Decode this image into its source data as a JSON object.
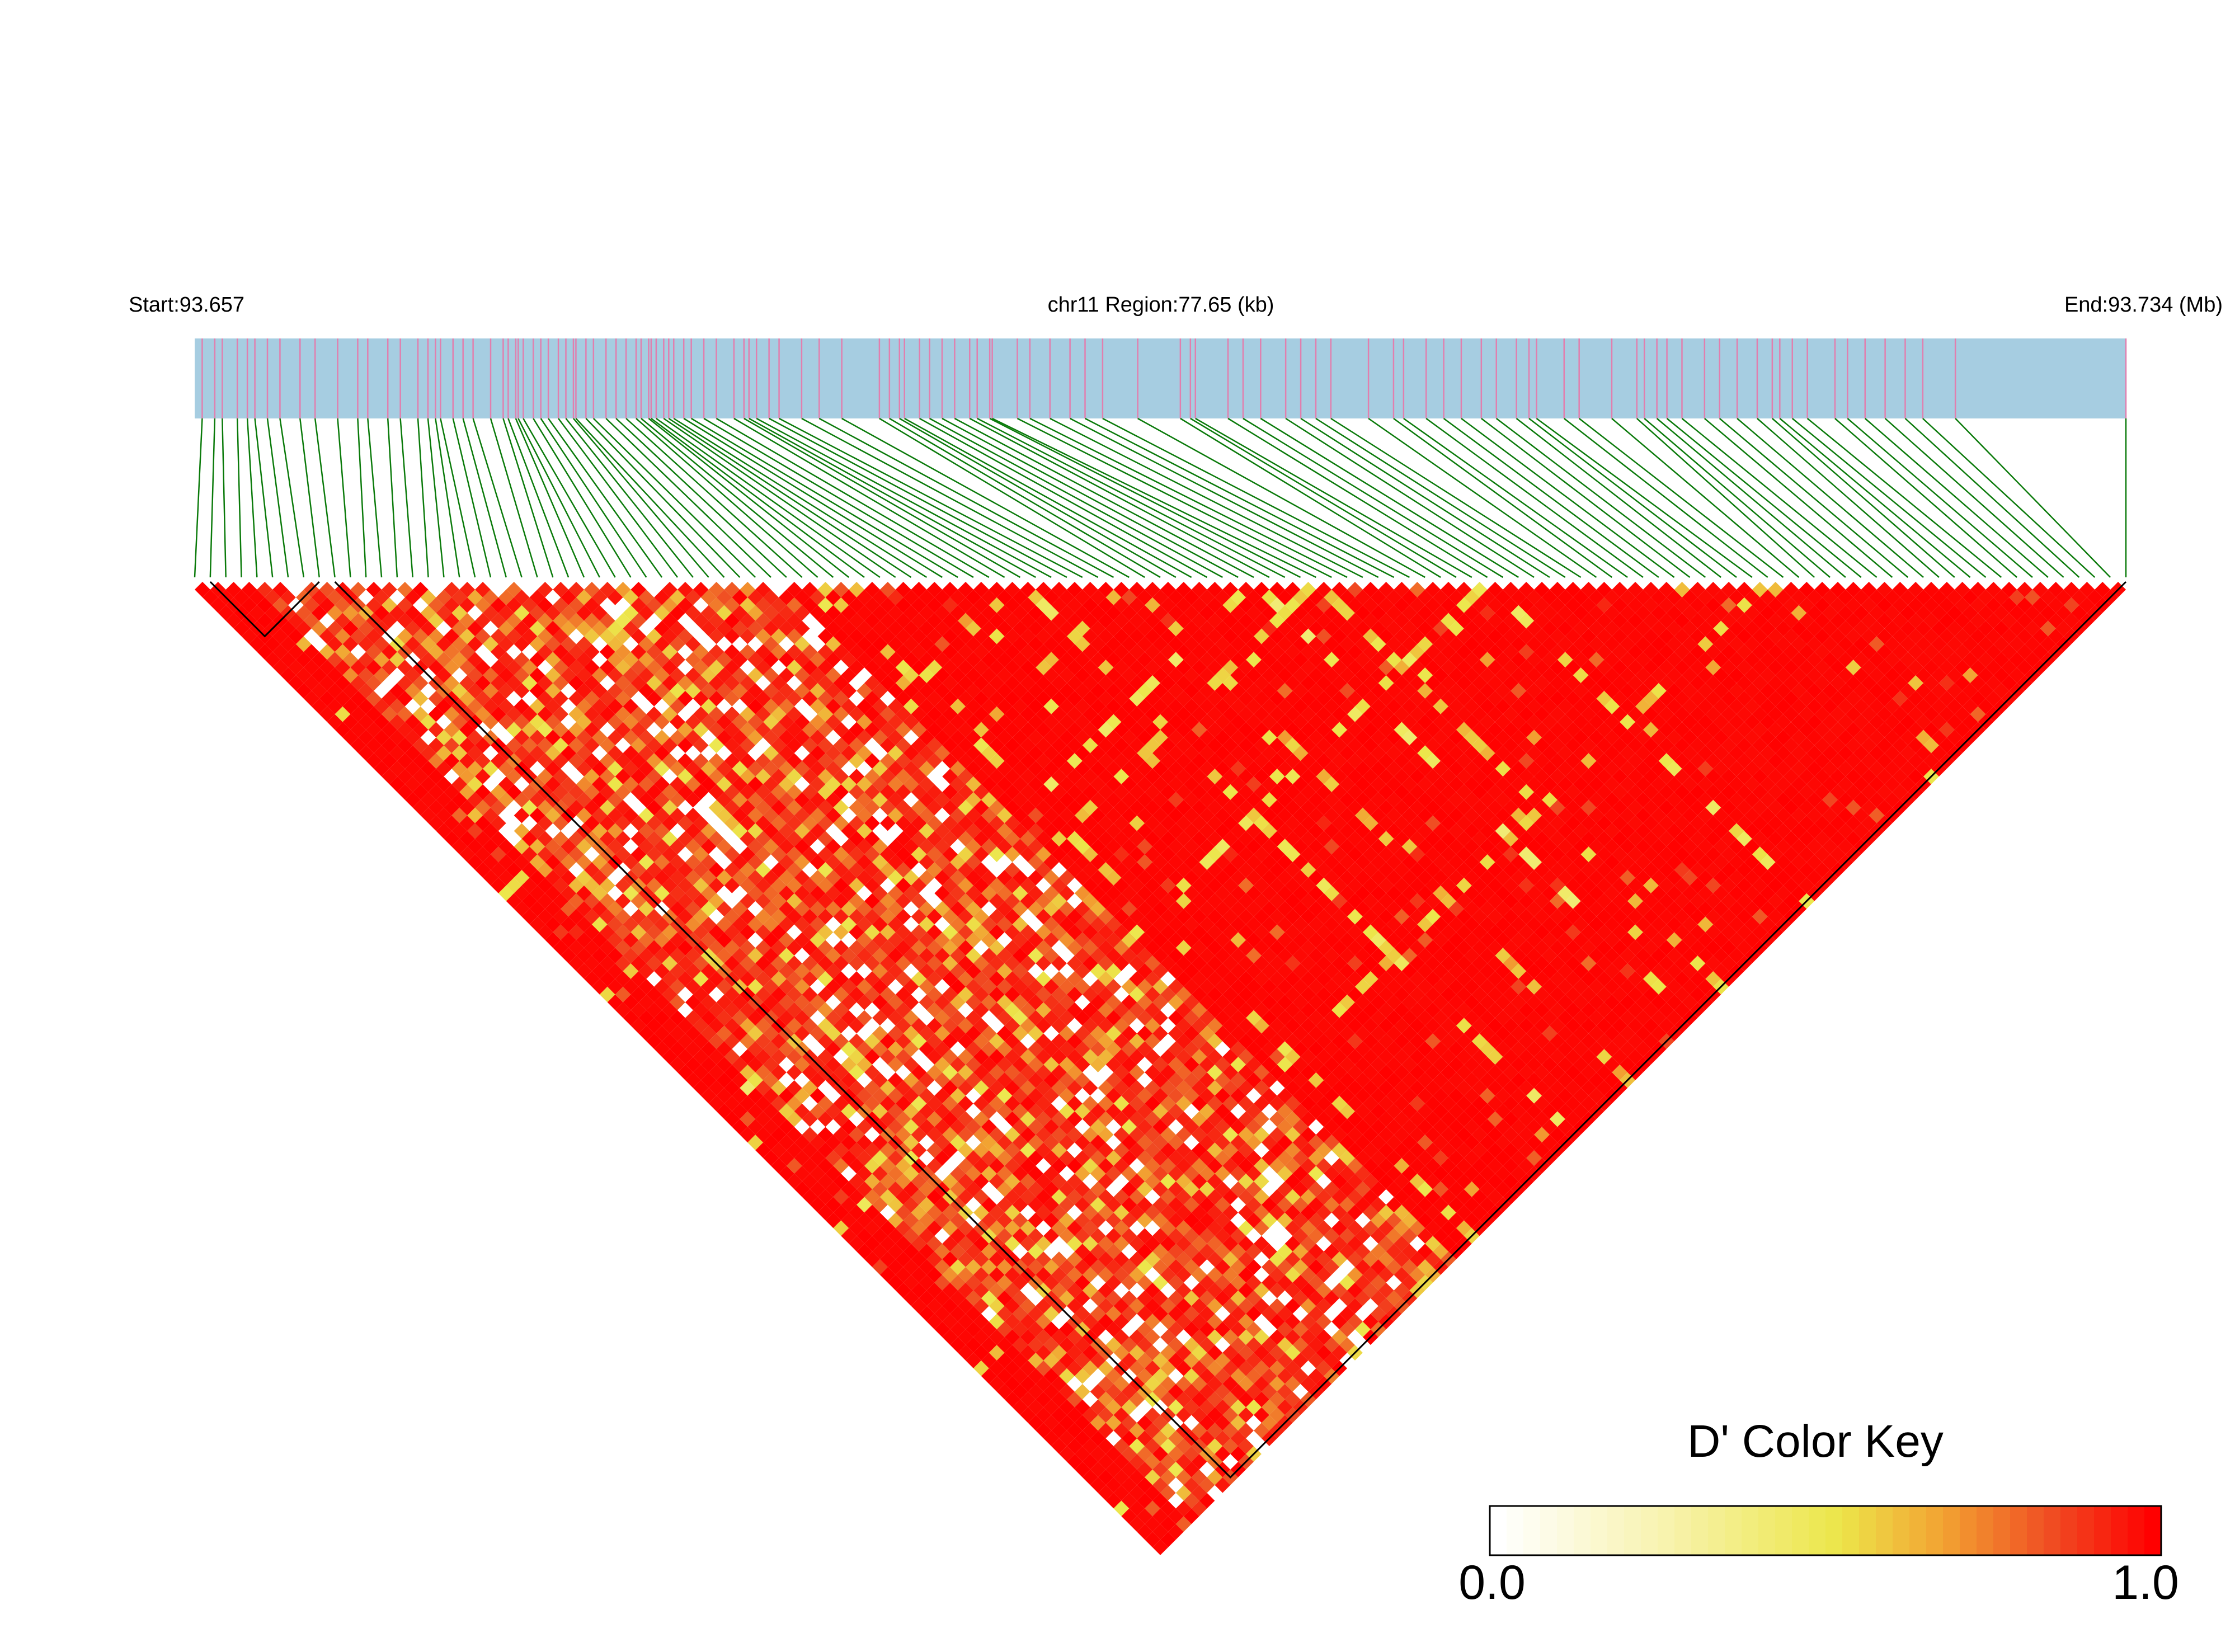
{
  "header": {
    "start_label": "Start:93.657",
    "region_label": "chr11 Region:77.65 (kb)",
    "end_label": "End:93.734 (Mb)"
  },
  "color_key": {
    "title": "D' Color Key",
    "min_label": "0.0",
    "max_label": "1.0",
    "colors": [
      "#ffffff",
      "#fbf7c8",
      "#f2ec8a",
      "#ece64a",
      "#f4b63c",
      "#f28a2e",
      "#f04a22",
      "#ff0000"
    ]
  },
  "colors": {
    "track_fill": "#a6cde1",
    "snp_tick": "#e17fae",
    "connector": "#0a7a0a",
    "ld_high": "#ff0000",
    "block_outline": "#000000"
  },
  "chart_data": {
    "type": "heatmap",
    "subtype": "LD triangle (D')",
    "chromosome": "chr11",
    "region_start_mb": 93.657,
    "region_end_mb": 93.734,
    "region_length_kb": 77.65,
    "value_range": [
      0.0,
      1.0
    ],
    "snp_count": 125,
    "snp_positions_mb": [
      93.6573,
      93.6578,
      93.6581,
      93.6587,
      93.6591,
      93.6594,
      93.6599,
      93.6604,
      93.6612,
      93.6618,
      93.6627,
      93.6635,
      93.6639,
      93.6647,
      93.6652,
      93.6659,
      93.6663,
      93.6666,
      93.6668,
      93.6673,
      93.6677,
      93.6681,
      93.6688,
      93.6693,
      93.6695,
      93.6698,
      93.6699,
      93.6701,
      93.6705,
      93.6708,
      93.6711,
      93.6715,
      93.6718,
      93.6721,
      93.6722,
      93.6726,
      93.6729,
      93.6734,
      93.6738,
      93.6742,
      93.6746,
      93.6748,
      93.6751,
      93.6752,
      93.6754,
      93.6757,
      93.6759,
      93.6761,
      93.6765,
      93.6768,
      93.6773,
      93.6778,
      93.6785,
      93.6789,
      93.6791,
      93.6794,
      93.6799,
      93.6803,
      93.6812,
      93.6819,
      93.6828,
      93.6843,
      93.6847,
      93.6851,
      93.6853,
      93.6859,
      93.6863,
      93.6868,
      93.6873,
      93.6879,
      93.6882,
      93.6887,
      93.6888,
      93.6898,
      93.6903,
      93.6911,
      93.6919,
      93.6925,
      93.6932,
      93.6946,
      93.6963,
      93.6967,
      93.6969,
      93.6982,
      93.6988,
      93.6995,
      93.7005,
      93.7011,
      93.7017,
      93.7023,
      93.7038,
      93.7048,
      93.7052,
      93.7061,
      93.7068,
      93.7075,
      93.7083,
      93.7089,
      93.7097,
      93.7102,
      93.7105,
      93.7116,
      93.7122,
      93.7135,
      93.7145,
      93.7148,
      93.7153,
      93.7157,
      93.7163,
      93.7172,
      93.7178,
      93.7185,
      93.7193,
      93.7199,
      93.7202,
      93.7207,
      93.7213,
      93.7224,
      93.7229,
      93.7236,
      93.7244,
      93.7252,
      93.7259,
      93.7272,
      93.734
    ],
    "background_dprime": 0.98,
    "low_ld_band": {
      "snp_from": 4,
      "snp_to": 37,
      "typical_dprime": 0.7
    },
    "weak_lines": [
      {
        "snp": 40,
        "dprime": 0.5
      },
      {
        "snp": 53,
        "dprime": 0.45
      },
      {
        "snp": 60,
        "dprime": 0.55
      },
      {
        "snp": 68,
        "dprime": 0.4
      },
      {
        "snp": 72,
        "dprime": 0.5
      },
      {
        "snp": 83,
        "dprime": 0.45
      },
      {
        "snp": 101,
        "dprime": 0.5
      }
    ],
    "ld_blocks": [
      {
        "snp_from": 1,
        "snp_to": 8
      },
      {
        "snp_from": 9,
        "snp_to": 124
      }
    ],
    "legend": "bottom-right"
  }
}
